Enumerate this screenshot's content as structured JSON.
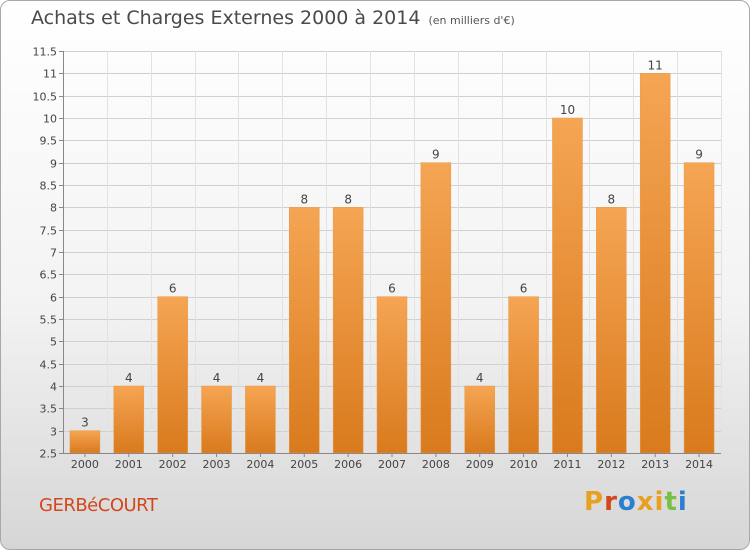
{
  "header": {
    "title": "Achats et Charges Externes 2000 à 2014",
    "unit": "(en milliers d'€)"
  },
  "footer": {
    "commune": "GERBéCOURT",
    "logo": "Proxiti",
    "logo_colors": [
      "#e8a020",
      "#d4461c",
      "#2a7fd0",
      "#e8a020",
      "#e8a020",
      "#7ac143",
      "#2a7fd0"
    ]
  },
  "colors": {
    "bar_top": "#f5a553",
    "bar_bottom": "#d97a1d",
    "grid": "#d0d0d0",
    "text": "#444444"
  },
  "chart_data": {
    "type": "bar",
    "title": "Achats et Charges Externes 2000 à 2014",
    "categories": [
      "2000",
      "2001",
      "2002",
      "2003",
      "2004",
      "2005",
      "2006",
      "2007",
      "2008",
      "2009",
      "2010",
      "2011",
      "2012",
      "2013",
      "2014"
    ],
    "values": [
      3,
      4,
      6,
      4,
      4,
      8,
      8,
      6,
      9,
      4,
      6,
      10,
      8,
      11,
      9
    ],
    "ylim": [
      2.5,
      11.5
    ],
    "yticks": [
      2.5,
      3,
      3.5,
      4,
      4.5,
      5,
      5.5,
      6,
      6.5,
      7,
      7.5,
      8,
      8.5,
      9,
      9.5,
      10,
      10.5,
      11,
      11.5
    ],
    "grid": true,
    "data_labels": true
  }
}
